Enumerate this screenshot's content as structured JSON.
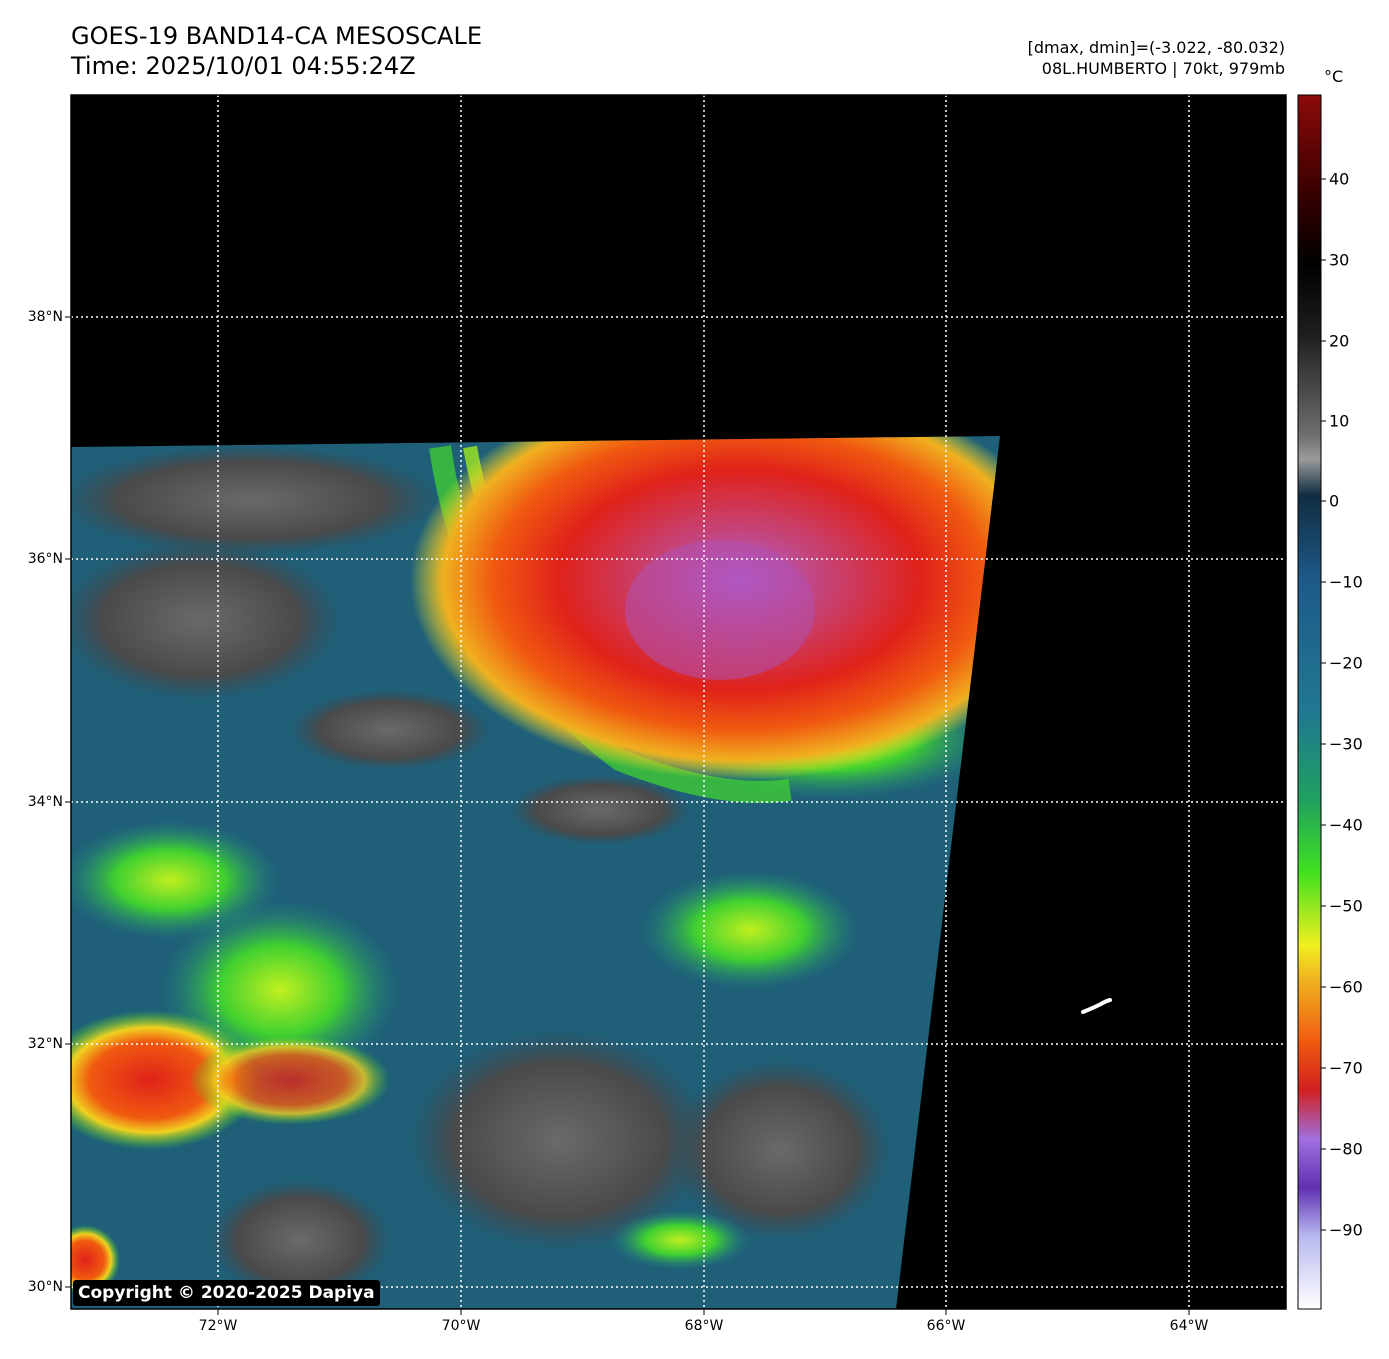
{
  "title": {
    "line1": "GOES-19 BAND14-CA MESOSCALE",
    "line2": "Time: 2025/10/01 04:55:24Z"
  },
  "info": {
    "line1": "[dmax, dmin]=(-3.022, -80.032)",
    "line2": "08L.HUMBERTO | 70kt, 979mb"
  },
  "colorbar": {
    "unit": "°C",
    "ticks": [
      "40",
      "30",
      "20",
      "10",
      "0",
      "−10",
      "−20",
      "−30",
      "−40",
      "−50",
      "−60",
      "−70",
      "−80",
      "−90"
    ]
  },
  "axes": {
    "lat_labels": [
      "38°N",
      "36°N",
      "34°N",
      "32°N",
      "30°N"
    ],
    "lon_labels": [
      "72°W",
      "70°W",
      "68°W",
      "66°W",
      "64°W"
    ]
  },
  "copyright": "Copyright © 2020-2025 Dapiya",
  "colors": {
    "background": "#000000",
    "cold_cloud_top": "#e0221a",
    "coldest_core": "#b060d8",
    "warm_ocean": "#1f5f78",
    "clear_gray": "#5a5a5a"
  }
}
